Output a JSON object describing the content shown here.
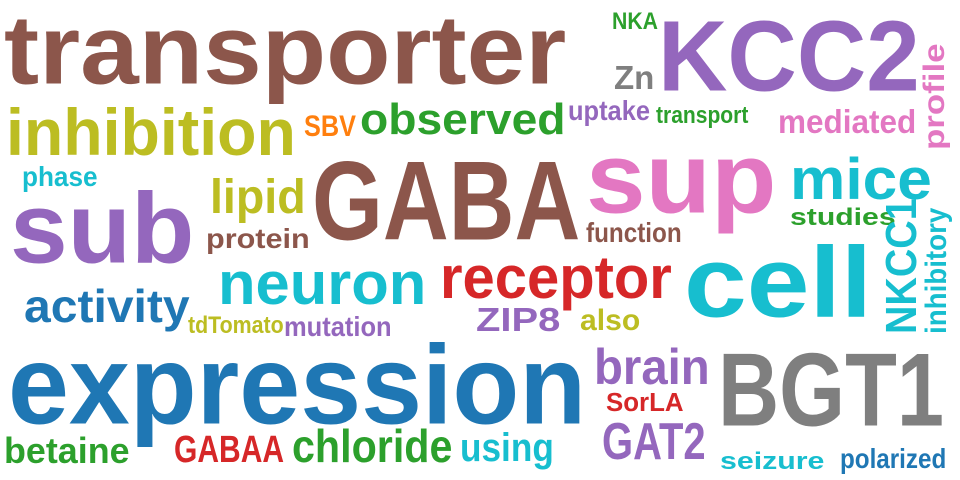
{
  "words": [
    {
      "text": "transporter",
      "color": "#8c564b"
    },
    {
      "text": "KCC2",
      "color": "#9467bd"
    },
    {
      "text": "NKA",
      "color": "#2ca02c"
    },
    {
      "text": "Zn",
      "color": "#7f7f7f"
    },
    {
      "text": "profile",
      "color": "#e377c2"
    },
    {
      "text": "inhibition",
      "color": "#bcbd22"
    },
    {
      "text": "SBV",
      "color": "#ff7f0e"
    },
    {
      "text": "observed",
      "color": "#2ca02c"
    },
    {
      "text": "uptake",
      "color": "#9467bd"
    },
    {
      "text": "transport",
      "color": "#2ca02c"
    },
    {
      "text": "mediated",
      "color": "#e377c2"
    },
    {
      "text": "sup",
      "color": "#e377c2"
    },
    {
      "text": "GABA",
      "color": "#8c564b"
    },
    {
      "text": "phase",
      "color": "#17becf"
    },
    {
      "text": "mice",
      "color": "#17becf"
    },
    {
      "text": "sub",
      "color": "#9467bd"
    },
    {
      "text": "lipid",
      "color": "#bcbd22"
    },
    {
      "text": "studies",
      "color": "#2ca02c"
    },
    {
      "text": "protein",
      "color": "#8c564b"
    },
    {
      "text": "function",
      "color": "#8c564b"
    },
    {
      "text": "NKCC1",
      "color": "#17becf"
    },
    {
      "text": "inhibitory",
      "color": "#17becf"
    },
    {
      "text": "cell",
      "color": "#17becf"
    },
    {
      "text": "neuron",
      "color": "#17becf"
    },
    {
      "text": "receptor",
      "color": "#d62728"
    },
    {
      "text": "activity",
      "color": "#1f77b4"
    },
    {
      "text": "tdTomato",
      "color": "#bcbd22"
    },
    {
      "text": "mutation",
      "color": "#9467bd"
    },
    {
      "text": "ZIP8",
      "color": "#9467bd"
    },
    {
      "text": "also",
      "color": "#bcbd22"
    },
    {
      "text": "expression",
      "color": "#1f77b4"
    },
    {
      "text": "brain",
      "color": "#9467bd"
    },
    {
      "text": "BGT1",
      "color": "#7f7f7f"
    },
    {
      "text": "SorLA",
      "color": "#d62728"
    },
    {
      "text": "GAT2",
      "color": "#9467bd"
    },
    {
      "text": "betaine",
      "color": "#2ca02c"
    },
    {
      "text": "GABAA",
      "color": "#d62728"
    },
    {
      "text": "chloride",
      "color": "#2ca02c"
    },
    {
      "text": "using",
      "color": "#17becf"
    },
    {
      "text": "seizure",
      "color": "#17becf"
    },
    {
      "text": "polarized",
      "color": "#1f77b4"
    }
  ]
}
